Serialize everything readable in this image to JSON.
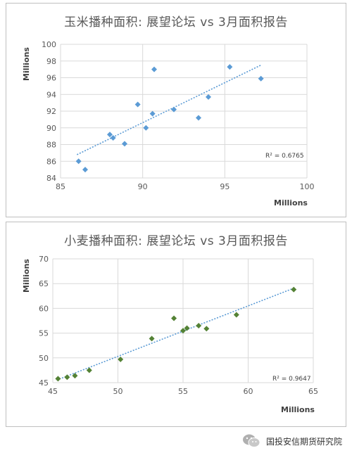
{
  "chart_data": [
    {
      "type": "scatter",
      "title": "玉米播种面积: 展望论坛 vs 3月面积报告",
      "xlabel": "Millions",
      "ylabel": "Millions",
      "xlim": [
        85,
        100
      ],
      "ylim": [
        84,
        100
      ],
      "x_ticks": [
        85,
        90,
        95,
        100
      ],
      "y_ticks": [
        84,
        86,
        88,
        90,
        92,
        94,
        96,
        98,
        100
      ],
      "grid": true,
      "trendline": "linear",
      "r_squared_label": "R² = 0.6765",
      "color": "#5b9bd5",
      "trend_color": "#5b9bd5",
      "points": [
        [
          86.1,
          86.0
        ],
        [
          86.5,
          85.0
        ],
        [
          88.0,
          89.2
        ],
        [
          88.2,
          88.8
        ],
        [
          88.9,
          88.1
        ],
        [
          89.7,
          92.8
        ],
        [
          90.2,
          90.0
        ],
        [
          90.6,
          91.7
        ],
        [
          90.7,
          97.0
        ],
        [
          91.9,
          92.2
        ],
        [
          93.4,
          91.2
        ],
        [
          94.0,
          93.7
        ],
        [
          95.3,
          97.3
        ],
        [
          97.2,
          95.9
        ]
      ],
      "trend_x": [
        86.0,
        97.2
      ]
    },
    {
      "type": "scatter",
      "title": "小麦播种面积: 展望论坛 vs 3月面积报告",
      "xlabel": "Millions",
      "ylabel": "Millions",
      "xlim": [
        45,
        65
      ],
      "ylim": [
        45,
        70
      ],
      "x_ticks": [
        45,
        50,
        55,
        60,
        65
      ],
      "y_ticks": [
        45,
        50,
        55,
        60,
        65,
        70
      ],
      "grid": true,
      "trendline": "linear",
      "r_squared_label": "R² = 0.9647",
      "color": "#548235",
      "trend_color": "#5b9bd5",
      "points": [
        [
          45.4,
          45.8
        ],
        [
          46.1,
          46.1
        ],
        [
          46.7,
          46.4
        ],
        [
          47.8,
          47.5
        ],
        [
          50.2,
          49.7
        ],
        [
          52.6,
          53.9
        ],
        [
          54.3,
          58.0
        ],
        [
          55.0,
          55.5
        ],
        [
          55.3,
          56.0
        ],
        [
          56.2,
          56.5
        ],
        [
          56.8,
          55.9
        ],
        [
          59.1,
          58.7
        ],
        [
          63.5,
          63.8
        ]
      ],
      "trend_x": [
        45.3,
        63.5
      ]
    }
  ],
  "footer": {
    "icon": "wechat-icon",
    "text": "国投安信期货研究院"
  }
}
